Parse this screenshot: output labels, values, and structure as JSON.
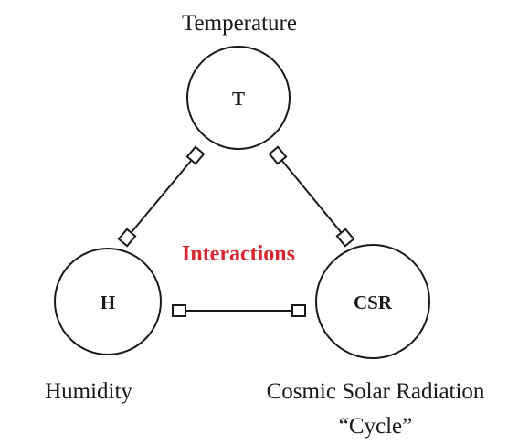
{
  "center_label": "Interactions",
  "nodes": [
    {
      "label": "T",
      "caption": "Temperature"
    },
    {
      "label": "H",
      "caption": "Humidity"
    },
    {
      "label": "CSR",
      "caption": "Cosmic Solar Radiation",
      "subcaption": "“Cycle”"
    }
  ]
}
